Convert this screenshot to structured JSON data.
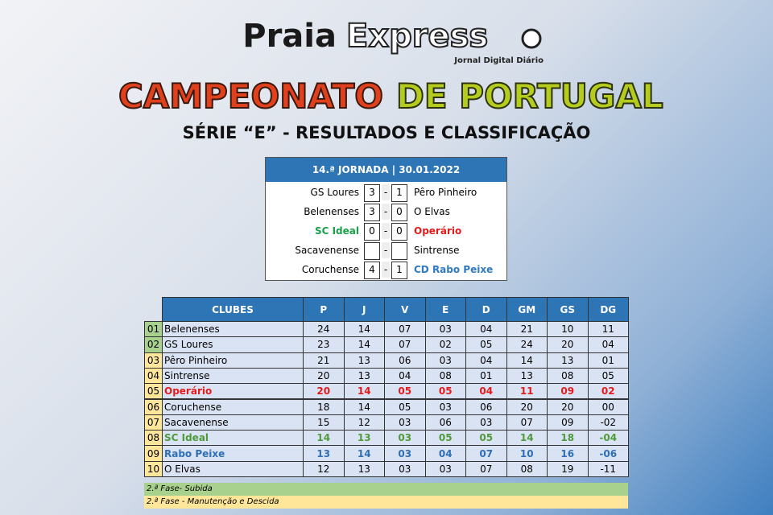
{
  "header": {
    "brand_1": "Praia",
    "brand_2": "Express",
    "tagline": "Jornal Digital Diário",
    "title_1": "CAMPEONATO",
    "title_2": "DE PORTUGAL",
    "subtitle": "SÉRIE “E” - RESULTADOS E CLASSIFICAÇÃO"
  },
  "results": {
    "heading": "14.ª JORNADA | 30.01.2022",
    "matches": [
      {
        "home": "GS Loures",
        "home_goals": "3",
        "away_goals": "1",
        "away": "Pêro Pinheiro"
      },
      {
        "home": "Belenenses",
        "home_goals": "3",
        "away_goals": "0",
        "away": "O Elvas"
      },
      {
        "home": "SC Ideal",
        "home_goals": "0",
        "away_goals": "0",
        "away": "Operário",
        "home_color": "#1aa04a",
        "away_color": "#e31b1b"
      },
      {
        "home": "Sacavenense",
        "home_goals": null,
        "away_goals": null,
        "away": "Sintrense"
      },
      {
        "home": "Coruchense",
        "home_goals": "4",
        "away_goals": "1",
        "away": "CD Rabo Peixe",
        "away_color": "#2e7ac4"
      }
    ]
  },
  "standings": {
    "headers": [
      "CLUBES",
      "P",
      "J",
      "V",
      "E",
      "D",
      "GM",
      "GS",
      "DG"
    ],
    "rows": [
      {
        "pos": "01",
        "club": "Belenenses",
        "stats": [
          "24",
          "14",
          "07",
          "03",
          "04",
          "21",
          "10",
          "11"
        ]
      },
      {
        "pos": "02",
        "club": "GS Loures",
        "stats": [
          "23",
          "14",
          "07",
          "02",
          "05",
          "24",
          "20",
          "04"
        ]
      },
      {
        "pos": "03",
        "club": "Pêro Pinheiro",
        "stats": [
          "21",
          "13",
          "06",
          "03",
          "04",
          "14",
          "13",
          "01"
        ]
      },
      {
        "pos": "04",
        "club": "Sintrense",
        "stats": [
          "20",
          "13",
          "04",
          "08",
          "01",
          "13",
          "08",
          "05"
        ]
      },
      {
        "pos": "05",
        "club": "Operário",
        "stats": [
          "20",
          "14",
          "05",
          "05",
          "04",
          "11",
          "09",
          "02"
        ],
        "color": "#e31b1b"
      },
      {
        "pos": "06",
        "club": "Coruchense",
        "stats": [
          "18",
          "14",
          "05",
          "03",
          "06",
          "20",
          "20",
          "00"
        ]
      },
      {
        "pos": "07",
        "club": "Sacavenense",
        "stats": [
          "15",
          "12",
          "03",
          "06",
          "03",
          "07",
          "09",
          "-02"
        ]
      },
      {
        "pos": "08",
        "club": "SC Ideal",
        "stats": [
          "14",
          "13",
          "03",
          "05",
          "05",
          "14",
          "18",
          "-04"
        ],
        "color": "#4f9a3a"
      },
      {
        "pos": "09",
        "club": "Rabo Peixe",
        "stats": [
          "13",
          "14",
          "03",
          "04",
          "07",
          "10",
          "16",
          "-06"
        ],
        "color": "#2e6fb5"
      },
      {
        "pos": "10",
        "club": "O Elvas",
        "stats": [
          "12",
          "13",
          "03",
          "03",
          "07",
          "08",
          "19",
          "-11"
        ]
      }
    ],
    "legend": [
      "2.ª Fase- Subida",
      "2.ª Fase - Manutenção e Descida"
    ]
  }
}
